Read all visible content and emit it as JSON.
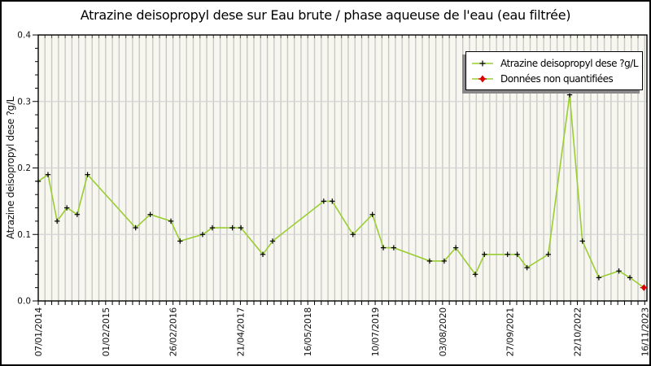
{
  "title": "Atrazine deisopropyl dese sur Eau brute / phase aqueuse de l'eau (eau filtrée)",
  "y_axis": {
    "label": "Atrazine deisopropyl dese ?g/L",
    "tick_labels": [
      "0.0",
      "0.1",
      "0.2",
      "0.3",
      "0.4"
    ],
    "min": 0,
    "max": 0.4,
    "minor_step": 0.02
  },
  "x_axis": {
    "tick_labels": [
      "07/01/2014",
      "01/02/2015",
      "26/02/2016",
      "21/04/2017",
      "16/05/2018",
      "10/07/2019",
      "03/08/2020",
      "27/09/2021",
      "22/10/2022",
      "16/11/2023"
    ],
    "minor_ticks_between_labels": 10
  },
  "legend": {
    "items": [
      {
        "label": "Atrazine deisopropyl dese ?g/L",
        "marker": "black-plus-on-green-line"
      },
      {
        "label": "Données non quantifiées",
        "marker": "red-star-on-green-line"
      }
    ]
  },
  "colors": {
    "series_line": "#9acd32",
    "marker": "#000000",
    "non_quantified": "#dd0000",
    "plot_background": "#f7f7ef",
    "stripe": "#c8c8c8",
    "gridline": "#d4d4d4",
    "axis": "#000000",
    "tick_text": "#111111",
    "legend_shadow": "#888888"
  },
  "chart_data": {
    "type": "line",
    "title": "Atrazine deisopropyl dese sur Eau brute / phase aqueuse de l'eau (eau filtrée)",
    "xlabel": "",
    "ylabel": "Atrazine deisopropyl dese ?g/L",
    "ylim": [
      0,
      0.4
    ],
    "grid": "horizontal major gridlines at 0.1/0.2/0.3 plus vertical minor-tick stripes",
    "legend_position": "top-right",
    "x_tick_labels": [
      "07/01/2014",
      "01/02/2015",
      "26/02/2016",
      "21/04/2017",
      "16/05/2018",
      "10/07/2019",
      "03/08/2020",
      "27/09/2021",
      "22/10/2022",
      "16/11/2023"
    ],
    "series": [
      {
        "name": "Atrazine deisopropyl dese ?g/L",
        "points": [
          {
            "x": 0.0,
            "v": 0.18
          },
          {
            "x": 0.016,
            "v": 0.19
          },
          {
            "x": 0.031,
            "v": 0.12
          },
          {
            "x": 0.047,
            "v": 0.14
          },
          {
            "x": 0.064,
            "v": 0.13
          },
          {
            "x": 0.081,
            "v": 0.19
          },
          {
            "x": 0.16,
            "v": 0.11
          },
          {
            "x": 0.184,
            "v": 0.13
          },
          {
            "x": 0.218,
            "v": 0.12
          },
          {
            "x": 0.233,
            "v": 0.09
          },
          {
            "x": 0.27,
            "v": 0.1
          },
          {
            "x": 0.286,
            "v": 0.11
          },
          {
            "x": 0.319,
            "v": 0.11
          },
          {
            "x": 0.333,
            "v": 0.11
          },
          {
            "x": 0.369,
            "v": 0.07
          },
          {
            "x": 0.385,
            "v": 0.09
          },
          {
            "x": 0.469,
            "v": 0.15
          },
          {
            "x": 0.483,
            "v": 0.15
          },
          {
            "x": 0.517,
            "v": 0.1
          },
          {
            "x": 0.549,
            "v": 0.13
          },
          {
            "x": 0.567,
            "v": 0.08
          },
          {
            "x": 0.584,
            "v": 0.08
          },
          {
            "x": 0.643,
            "v": 0.06
          },
          {
            "x": 0.667,
            "v": 0.06
          },
          {
            "x": 0.686,
            "v": 0.08
          },
          {
            "x": 0.718,
            "v": 0.04
          },
          {
            "x": 0.733,
            "v": 0.07
          },
          {
            "x": 0.771,
            "v": 0.07
          },
          {
            "x": 0.787,
            "v": 0.07
          },
          {
            "x": 0.803,
            "v": 0.05
          },
          {
            "x": 0.838,
            "v": 0.07
          },
          {
            "x": 0.873,
            "v": 0.31
          },
          {
            "x": 0.894,
            "v": 0.09
          },
          {
            "x": 0.921,
            "v": 0.035
          },
          {
            "x": 0.954,
            "v": 0.045
          },
          {
            "x": 0.972,
            "v": 0.035
          },
          {
            "x": 0.995,
            "v": 0.02,
            "quantified": false
          }
        ]
      }
    ]
  }
}
